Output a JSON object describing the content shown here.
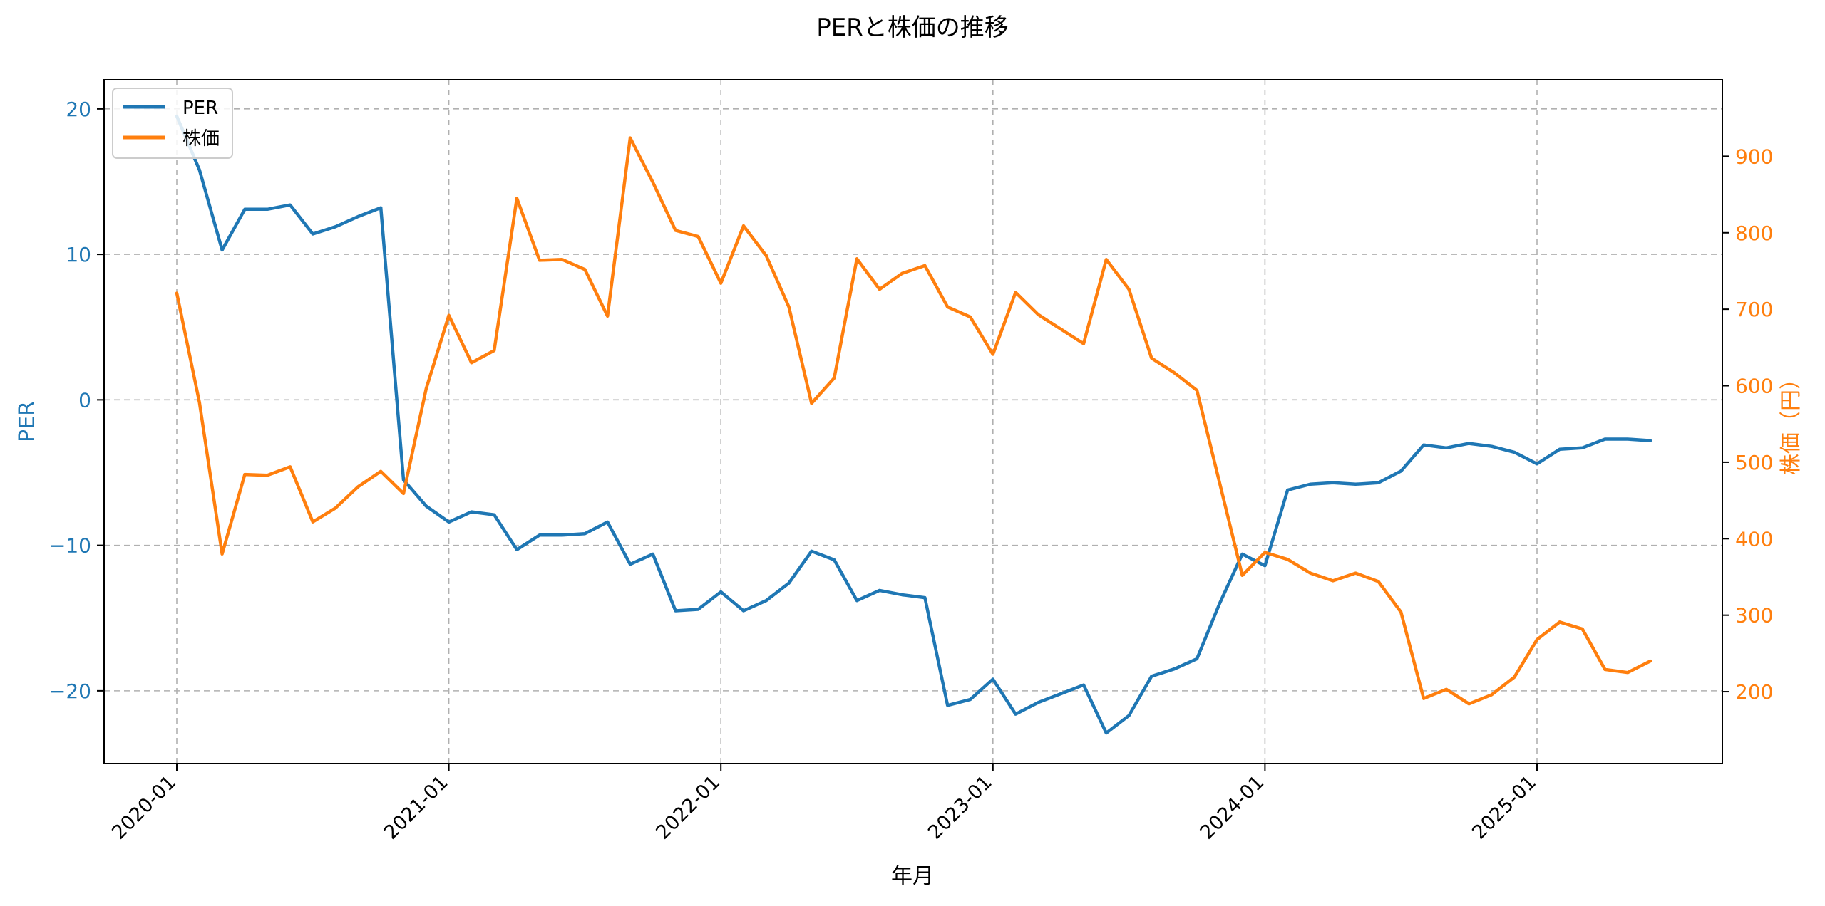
{
  "chart_data": {
    "type": "line",
    "title": "PERと株価の推移",
    "xlabel": "年月",
    "ylabel_left": "PER",
    "ylabel_right": "株価（円）",
    "x_ticks": [
      "2020-01",
      "2021-01",
      "2022-01",
      "2023-01",
      "2024-01",
      "2025-01"
    ],
    "y_left_ticks": [
      -20,
      -10,
      0,
      10,
      20
    ],
    "y_right_ticks": [
      200,
      300,
      400,
      500,
      600,
      700,
      800,
      900
    ],
    "ylim_left": [
      -25,
      22
    ],
    "ylim_right": [
      106,
      1000
    ],
    "grid": true,
    "legend_position": "upper-left",
    "colors": {
      "PER": "#1f77b4",
      "株価": "#ff7f0e"
    },
    "x": [
      "2020-01",
      "2020-02",
      "2020-03",
      "2020-04",
      "2020-05",
      "2020-06",
      "2020-07",
      "2020-08",
      "2020-09",
      "2020-10",
      "2020-11",
      "2020-12",
      "2021-01",
      "2021-02",
      "2021-03",
      "2021-04",
      "2021-05",
      "2021-06",
      "2021-07",
      "2021-08",
      "2021-09",
      "2021-10",
      "2021-11",
      "2021-12",
      "2022-01",
      "2022-02",
      "2022-03",
      "2022-04",
      "2022-05",
      "2022-06",
      "2022-07",
      "2022-08",
      "2022-09",
      "2022-10",
      "2022-11",
      "2022-12",
      "2023-01",
      "2023-02",
      "2023-03",
      "2023-04",
      "2023-05",
      "2023-06",
      "2023-07",
      "2023-08",
      "2023-09",
      "2023-10",
      "2023-11",
      "2023-12",
      "2024-01",
      "2024-02",
      "2024-03",
      "2024-04",
      "2024-05",
      "2024-06",
      "2024-07",
      "2024-08",
      "2024-09",
      "2024-10",
      "2024-11",
      "2024-12",
      "2025-01",
      "2025-02",
      "2025-03",
      "2025-04",
      "2025-05",
      "2025-06"
    ],
    "series": [
      {
        "name": "PER",
        "axis": "left",
        "values": [
          19.5,
          15.8,
          10.3,
          13.1,
          13.1,
          13.4,
          11.4,
          11.9,
          12.6,
          13.2,
          -5.5,
          -7.3,
          -8.4,
          -7.7,
          -7.9,
          -10.3,
          -9.3,
          -9.3,
          -9.2,
          -8.4,
          -11.3,
          -10.6,
          -14.5,
          -14.4,
          -13.2,
          -14.5,
          -13.8,
          -12.6,
          -10.4,
          -11.0,
          -13.8,
          -13.1,
          -13.4,
          -13.6,
          -21.0,
          -20.6,
          -19.2,
          -21.6,
          -20.8,
          -20.2,
          -19.6,
          -22.9,
          -21.7,
          -19.0,
          -18.5,
          -17.8,
          -14.0,
          -10.6,
          -11.4,
          -6.2,
          -5.8,
          -5.7,
          -5.8,
          -5.7,
          -4.9,
          -3.1,
          -3.3,
          -3.0,
          -3.2,
          -3.6,
          -4.4,
          -3.4,
          -3.3,
          -2.7,
          -2.7,
          -2.8
        ]
      },
      {
        "name": "株価",
        "axis": "right",
        "values": [
          721,
          578,
          380,
          484,
          483,
          494,
          422,
          440,
          468,
          488,
          459,
          596,
          692,
          630,
          646,
          845,
          764,
          765,
          752,
          691,
          924,
          866,
          803,
          795,
          734,
          809,
          770,
          703,
          577,
          610,
          766,
          726,
          747,
          757,
          703,
          690,
          641,
          722,
          693,
          674,
          655,
          765,
          726,
          636,
          617,
          594,
          473,
          352,
          382,
          373,
          355,
          345,
          355,
          344,
          304,
          191,
          203,
          184,
          196,
          219,
          268,
          291,
          282,
          229,
          225,
          240
        ]
      }
    ]
  }
}
